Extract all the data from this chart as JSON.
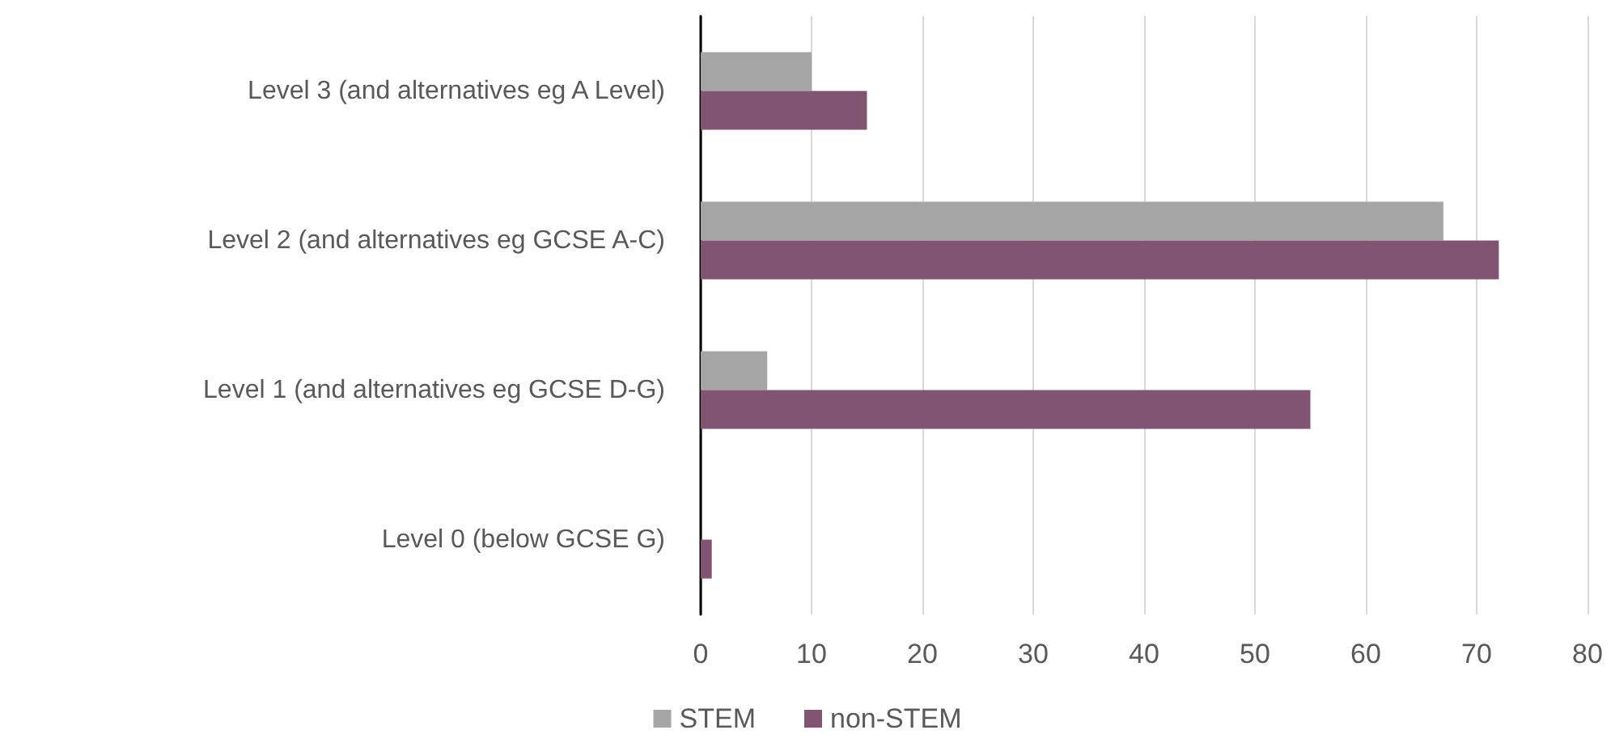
{
  "chart_data": {
    "type": "bar",
    "orientation": "horizontal",
    "categories": [
      "Level 3 (and alternatives eg A Level)",
      "Level 2 (and alternatives eg GCSE A-C)",
      "Level 1 (and alternatives eg GCSE D-G)",
      "Level 0 (below GCSE G)"
    ],
    "series": [
      {
        "name": "STEM",
        "color": "#a5a5a5",
        "values": [
          10,
          67,
          6,
          0
        ]
      },
      {
        "name": "non-STEM",
        "color": "#815472",
        "values": [
          15,
          72,
          55,
          1
        ]
      }
    ],
    "xlim": [
      0,
      80
    ],
    "xticks": [
      0,
      10,
      20,
      30,
      40,
      50,
      60,
      70,
      80
    ],
    "grid": "x",
    "legend": "bottom"
  }
}
